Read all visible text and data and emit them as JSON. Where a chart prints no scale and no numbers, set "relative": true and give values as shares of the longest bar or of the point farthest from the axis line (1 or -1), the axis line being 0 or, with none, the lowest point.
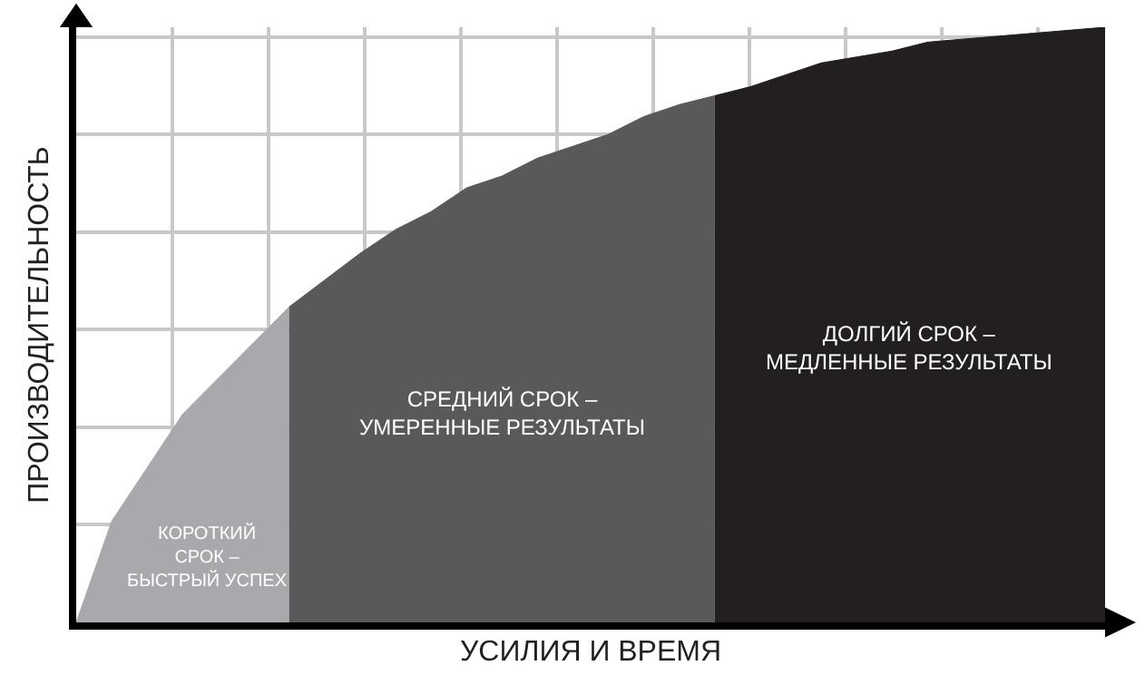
{
  "chart_data": {
    "type": "area",
    "relative": true,
    "xlabel": "УСИЛИЯ И ВРЕМЯ",
    "ylabel": "ПРОИЗВОДИТЕЛЬНОСТЬ",
    "grid": true,
    "legend": false,
    "categories": [
      null,
      null,
      null,
      null,
      null,
      null,
      null,
      null,
      null,
      null,
      null,
      null,
      null,
      null,
      null,
      null,
      null,
      null,
      null,
      null,
      null,
      null,
      null,
      null,
      null,
      null,
      null,
      null,
      null,
      null
    ],
    "series": [
      {
        "name": "КОРОТКИЙ\nСРОК –\nБЫСТРЫЙ УСПЕХ",
        "color": "#a7a9ac",
        "values": [
          0,
          0.17,
          0.26,
          0.35,
          0.41,
          0.47,
          0.53,
          null,
          null,
          null,
          null,
          null,
          null,
          null,
          null,
          null,
          null,
          null,
          null,
          null,
          null,
          null,
          null,
          null,
          null,
          null,
          null,
          null,
          null,
          null
        ]
      },
      {
        "name": "СРЕДНИЙ СРОК –\nУМЕРЕННЫЕ РЕЗУЛЬТАТЫ",
        "color": "#58595b",
        "values": [
          null,
          null,
          null,
          null,
          null,
          null,
          0.53,
          0.575,
          0.62,
          0.66,
          0.69,
          0.73,
          0.75,
          0.78,
          0.8,
          0.82,
          0.85,
          0.87,
          0.885,
          null,
          null,
          null,
          null,
          null,
          null,
          null,
          null,
          null,
          null,
          null
        ]
      },
      {
        "name": "ДОЛГИЙ СРОК –\nМЕДЛЕННЫЕ РЕЗУЛЬТАТЫ",
        "color": "#231f20",
        "values": [
          null,
          null,
          null,
          null,
          null,
          null,
          null,
          null,
          null,
          null,
          null,
          null,
          null,
          null,
          null,
          null,
          null,
          null,
          0.885,
          0.9,
          0.92,
          0.94,
          0.95,
          0.96,
          0.975,
          0.98,
          0.985,
          0.99,
          0.995,
          1
        ]
      }
    ]
  }
}
